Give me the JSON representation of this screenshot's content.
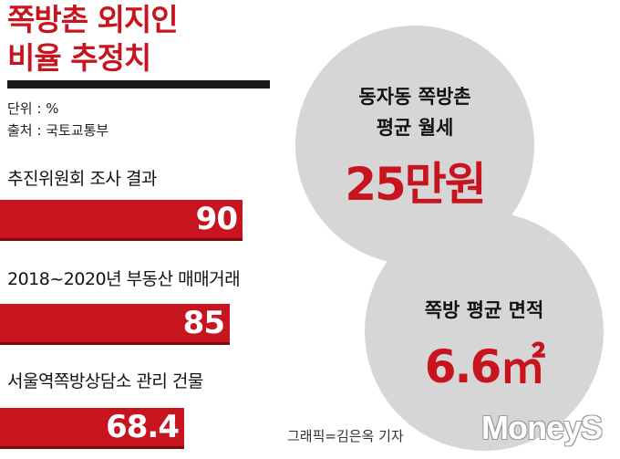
{
  "title_lines": [
    "쪽방촌 외지인",
    "비율 추정치"
  ],
  "unit": "단위 : %",
  "source": "출처 : 국토교통부",
  "colors": {
    "accent": "#c8141e",
    "bar_shadow": "#7a0c11",
    "circle": "#d6d6d6",
    "rule": "#1b1b1b"
  },
  "chart_data": {
    "type": "bar",
    "orientation": "horizontal",
    "categories": [
      "추진위원회 조사 결과",
      "2018~2020년 부동산 매매거래",
      "서울역쪽방상담소 관리 건물"
    ],
    "values": [
      90,
      85,
      68.4
    ],
    "value_labels": [
      "90",
      "85",
      "68.4"
    ],
    "xlim": [
      0,
      100
    ]
  },
  "stats": {
    "rent": {
      "label_lines": [
        "동자동 쪽방촌",
        "평균 월세"
      ],
      "value": "25만원"
    },
    "area": {
      "label": "쪽방 평균 면적",
      "value": "6.6㎡"
    }
  },
  "credit": "그래픽=김은옥 기자",
  "logo_text": "MoneyS"
}
